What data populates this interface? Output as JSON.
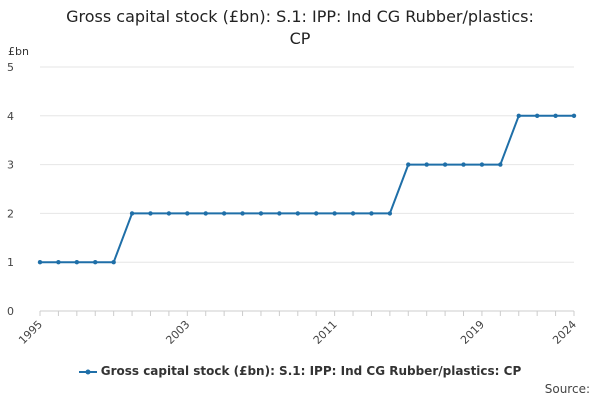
{
  "chart_data": {
    "type": "line",
    "title_lines": [
      "Gross capital stock (£bn): S.1: IPP: Ind CG Rubber/plastics:",
      "CP"
    ],
    "y_unit": "£bn",
    "ylim": [
      0,
      5
    ],
    "y_ticks": [
      0,
      1,
      2,
      3,
      4,
      5
    ],
    "x_ticks": [
      "1995",
      "2003",
      "2011",
      "2019",
      "2024"
    ],
    "grid": true,
    "legend_position": "bottom",
    "colors": {
      "series": "#1f6fa8",
      "grid": "#e6e6e6",
      "axis": "#cccccc"
    },
    "x": [
      1995,
      1996,
      1997,
      1998,
      1999,
      2000,
      2001,
      2002,
      2003,
      2004,
      2005,
      2006,
      2007,
      2008,
      2009,
      2010,
      2011,
      2012,
      2013,
      2014,
      2015,
      2016,
      2017,
      2018,
      2019,
      2020,
      2021,
      2022,
      2023,
      2024
    ],
    "series": [
      {
        "name": "Gross capital stock (£bn): S.1: IPP: Ind CG Rubber/plastics: CP",
        "values": [
          1,
          1,
          1,
          1,
          1,
          2,
          2,
          2,
          2,
          2,
          2,
          2,
          2,
          2,
          2,
          2,
          2,
          2,
          2,
          2,
          3,
          3,
          3,
          3,
          3,
          3,
          4,
          4,
          4,
          4
        ]
      }
    ],
    "source_label": "Source:"
  }
}
